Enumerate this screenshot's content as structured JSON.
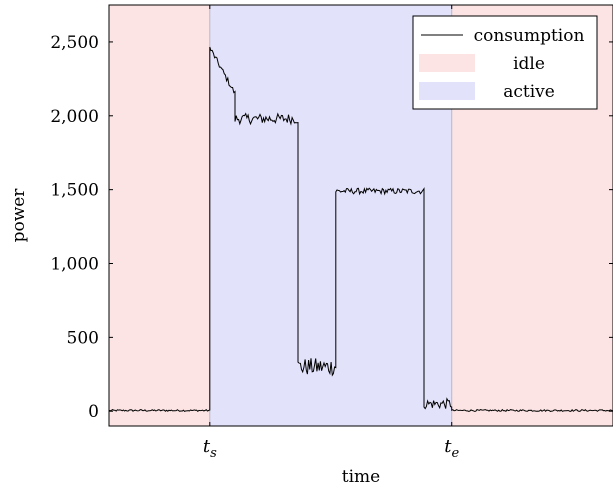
{
  "chart_data": {
    "type": "line",
    "xlabel": "time",
    "ylabel": "power",
    "ylim": [
      -100,
      2750
    ],
    "x_range": [
      0,
      1
    ],
    "y_ticks": [
      {
        "value": 0,
        "label": "0"
      },
      {
        "value": 500,
        "label": "500"
      },
      {
        "value": 1000,
        "label": "1,000"
      },
      {
        "value": 1500,
        "label": "1,500"
      },
      {
        "value": 2000,
        "label": "2,000"
      },
      {
        "value": 2500,
        "label": "2,500"
      }
    ],
    "x_ticks": [
      {
        "value": 0.2,
        "label": "t",
        "subscript": "s"
      },
      {
        "value": 0.68,
        "label": "t",
        "subscript": "e"
      }
    ],
    "regions": [
      {
        "name": "idle",
        "x": [
          0,
          0.2
        ],
        "color": "#fce4e4"
      },
      {
        "name": "active",
        "x": [
          0.2,
          0.68
        ],
        "color": "#e2e2fa"
      },
      {
        "name": "idle",
        "x": [
          0.68,
          1
        ],
        "color": "#fce4e4"
      }
    ],
    "series": [
      {
        "name": "consumption",
        "color": "#000000",
        "segments": [
          {
            "x": [
              0.0,
              0.2
            ],
            "level": 5,
            "noise": 6
          },
          {
            "x": [
              0.2,
              0.2
            ],
            "level": 5
          },
          {
            "x": [
              0.2,
              0.25
            ],
            "start": 2460,
            "end": 2150,
            "noise": 20
          },
          {
            "x": [
              0.25,
              0.375
            ],
            "level": 1980,
            "noise": 35
          },
          {
            "x": [
              0.375,
              0.45
            ],
            "level": 300,
            "noise": 60
          },
          {
            "x": [
              0.45,
              0.625
            ],
            "level": 1490,
            "noise": 20
          },
          {
            "x": [
              0.625,
              0.68
            ],
            "level": 50,
            "noise": 35
          },
          {
            "x": [
              0.68,
              1.0
            ],
            "level": 5,
            "noise": 6
          }
        ]
      }
    ],
    "legend": {
      "position": "top-right",
      "entries": [
        {
          "label": "consumption",
          "kind": "line",
          "color": "#000000"
        },
        {
          "label": "idle",
          "kind": "area",
          "color": "#fce4e4"
        },
        {
          "label": "active",
          "kind": "area",
          "color": "#e2e2fa"
        }
      ]
    }
  }
}
